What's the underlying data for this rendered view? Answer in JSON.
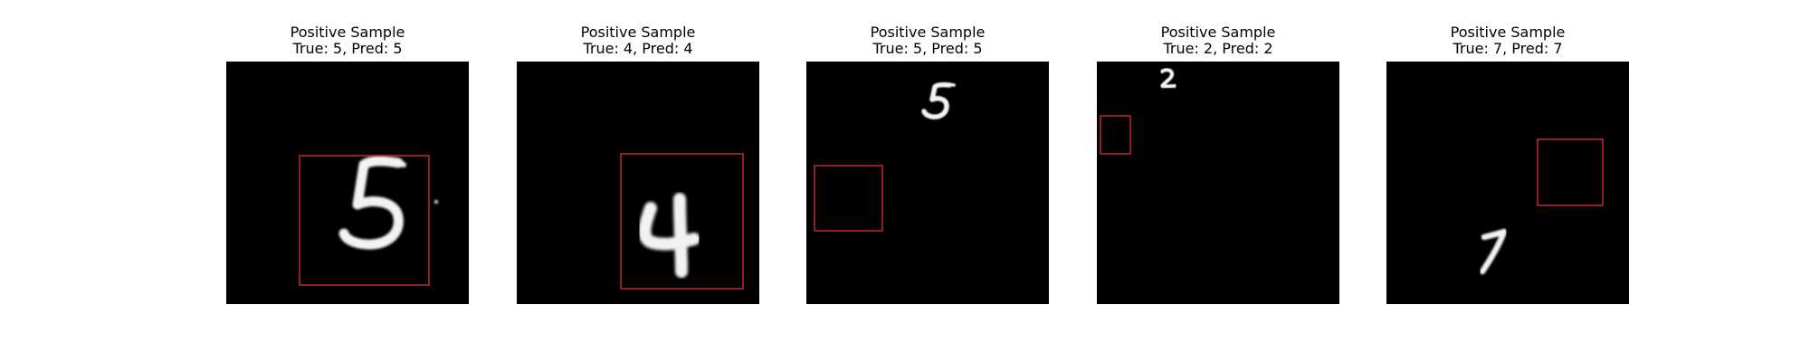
{
  "colors": {
    "background": "#ffffff",
    "image_background": "#000000",
    "digit": "#f2f2f2",
    "box": "#e03030"
  },
  "samples": [
    {
      "title": "Positive Sample",
      "label": "True: 5, Pred: 5",
      "digit": "5"
    },
    {
      "title": "Positive Sample",
      "label": "True: 4, Pred: 4",
      "digit": "4"
    },
    {
      "title": "Positive Sample",
      "label": "True: 5, Pred: 5",
      "digit": "5"
    },
    {
      "title": "Positive Sample",
      "label": "True: 2, Pred: 2",
      "digit": "2"
    },
    {
      "title": "Positive Sample",
      "label": "True: 7, Pred: 7",
      "digit": "7"
    }
  ]
}
